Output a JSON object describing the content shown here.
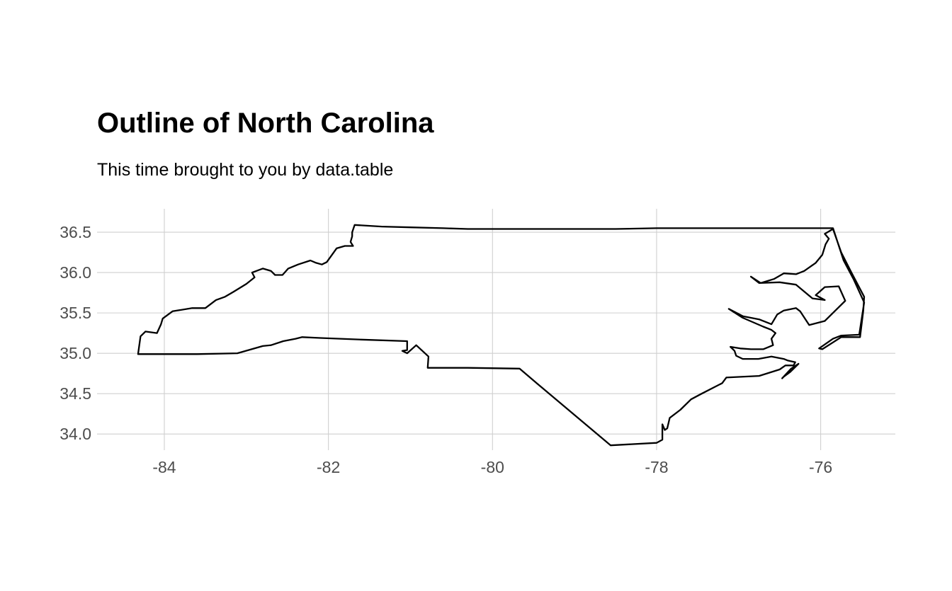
{
  "chart_data": {
    "type": "line",
    "title": "Outline of North Carolina",
    "subtitle": "This time brought to you by data.table",
    "xlabel": "",
    "ylabel": "",
    "xlim": [
      -84.82,
      -75.09
    ],
    "ylim": [
      33.8,
      36.79
    ],
    "x_ticks": [
      -84,
      -82,
      -80,
      -78,
      -76
    ],
    "x_tick_labels": [
      "-84",
      "-82",
      "-80",
      "-78",
      "-76"
    ],
    "y_ticks": [
      34.0,
      34.5,
      35.0,
      35.5,
      36.0,
      36.5
    ],
    "y_tick_labels": [
      "34.0",
      "34.5",
      "35.0",
      "35.5",
      "36.0",
      "36.5"
    ],
    "grid": true,
    "legend": "none",
    "colors": {
      "line": "#000000",
      "grid": "#cfcfcf",
      "tick_text": "#4d4d4d",
      "background": "#ffffff"
    },
    "series": [
      {
        "points": [
          [
            -84.32,
            34.99
          ],
          [
            -83.6,
            34.99
          ],
          [
            -83.11,
            35.0
          ],
          [
            -82.8,
            35.09
          ],
          [
            -82.7,
            35.1
          ],
          [
            -82.55,
            35.15
          ],
          [
            -82.4,
            35.18
          ],
          [
            -82.32,
            35.2
          ],
          [
            -82.1,
            35.19
          ],
          [
            -81.6,
            35.17
          ],
          [
            -81.04,
            35.15
          ],
          [
            -81.04,
            35.04
          ],
          [
            -81.1,
            35.03
          ],
          [
            -81.04,
            35.0
          ],
          [
            -80.93,
            35.1
          ],
          [
            -80.78,
            34.96
          ],
          [
            -80.79,
            34.82
          ],
          [
            -80.3,
            34.82
          ],
          [
            -79.67,
            34.81
          ],
          [
            -79.45,
            34.62
          ],
          [
            -78.56,
            33.86
          ],
          [
            -78.0,
            33.89
          ],
          [
            -77.93,
            33.93
          ],
          [
            -77.93,
            34.12
          ],
          [
            -77.9,
            34.05
          ],
          [
            -77.87,
            34.07
          ],
          [
            -77.84,
            34.2
          ],
          [
            -77.71,
            34.3
          ],
          [
            -77.58,
            34.43
          ],
          [
            -77.45,
            34.5
          ],
          [
            -77.2,
            34.63
          ],
          [
            -77.15,
            34.7
          ],
          [
            -76.75,
            34.72
          ],
          [
            -76.5,
            34.8
          ],
          [
            -76.43,
            34.85
          ],
          [
            -76.33,
            34.85
          ],
          [
            -76.31,
            34.89
          ],
          [
            -76.4,
            34.91
          ],
          [
            -76.45,
            34.93
          ],
          [
            -76.6,
            34.96
          ],
          [
            -76.76,
            34.93
          ],
          [
            -76.95,
            34.93
          ],
          [
            -77.03,
            34.97
          ],
          [
            -77.05,
            35.03
          ],
          [
            -77.1,
            35.08
          ],
          [
            -76.98,
            35.06
          ],
          [
            -76.85,
            35.05
          ],
          [
            -76.7,
            35.05
          ],
          [
            -76.58,
            35.1
          ],
          [
            -76.6,
            35.18
          ],
          [
            -76.55,
            35.25
          ],
          [
            -76.6,
            35.29
          ],
          [
            -76.7,
            35.33
          ],
          [
            -76.95,
            35.44
          ],
          [
            -77.12,
            35.55
          ],
          [
            -76.95,
            35.46
          ],
          [
            -76.75,
            35.42
          ],
          [
            -76.6,
            35.36
          ],
          [
            -76.53,
            35.48
          ],
          [
            -76.45,
            35.53
          ],
          [
            -76.3,
            35.56
          ],
          [
            -76.25,
            35.52
          ],
          [
            -76.14,
            35.35
          ],
          [
            -75.95,
            35.4
          ],
          [
            -75.85,
            35.5
          ],
          [
            -75.7,
            35.65
          ],
          [
            -75.78,
            35.83
          ],
          [
            -75.95,
            35.82
          ],
          [
            -76.06,
            35.72
          ],
          [
            -75.95,
            35.66
          ],
          [
            -76.1,
            35.68
          ],
          [
            -76.3,
            35.85
          ],
          [
            -76.5,
            35.88
          ],
          [
            -76.75,
            35.87
          ],
          [
            -76.85,
            35.95
          ],
          [
            -76.73,
            35.87
          ],
          [
            -76.57,
            35.92
          ],
          [
            -76.45,
            35.99
          ],
          [
            -76.3,
            35.98
          ],
          [
            -76.2,
            36.02
          ],
          [
            -76.06,
            36.12
          ],
          [
            -75.98,
            36.22
          ],
          [
            -75.94,
            36.35
          ],
          [
            -75.9,
            36.42
          ],
          [
            -75.95,
            36.48
          ],
          [
            -75.85,
            36.54
          ],
          [
            -75.75,
            36.25
          ],
          [
            -75.62,
            35.99
          ],
          [
            -75.47,
            35.7
          ],
          [
            -75.48,
            35.53
          ],
          [
            -75.52,
            35.2
          ],
          [
            -75.75,
            35.2
          ],
          [
            -75.98,
            35.05
          ],
          [
            -76.02,
            35.06
          ],
          [
            -75.85,
            35.18
          ],
          [
            -75.75,
            35.22
          ],
          [
            -75.53,
            35.23
          ],
          [
            -75.47,
            35.63
          ],
          [
            -75.6,
            35.92
          ],
          [
            -75.72,
            36.15
          ],
          [
            -75.85,
            36.55
          ],
          [
            -75.9,
            36.55
          ],
          [
            -76.2,
            36.55
          ],
          [
            -76.5,
            36.55
          ],
          [
            -77.0,
            36.55
          ],
          [
            -77.5,
            36.55
          ],
          [
            -78.0,
            36.55
          ],
          [
            -78.5,
            36.54
          ],
          [
            -79.0,
            36.54
          ],
          [
            -79.5,
            36.54
          ],
          [
            -80.0,
            36.54
          ],
          [
            -80.3,
            36.54
          ],
          [
            -80.6,
            36.55
          ],
          [
            -81.0,
            36.56
          ],
          [
            -81.35,
            36.57
          ],
          [
            -81.68,
            36.59
          ],
          [
            -81.71,
            36.5
          ],
          [
            -81.71,
            36.45
          ],
          [
            -81.73,
            36.38
          ],
          [
            -81.7,
            36.33
          ],
          [
            -81.8,
            36.33
          ],
          [
            -81.9,
            36.3
          ],
          [
            -82.02,
            36.13
          ],
          [
            -82.08,
            36.1
          ],
          [
            -82.15,
            36.12
          ],
          [
            -82.22,
            36.15
          ],
          [
            -82.37,
            36.1
          ],
          [
            -82.49,
            36.05
          ],
          [
            -82.56,
            35.97
          ],
          [
            -82.65,
            35.97
          ],
          [
            -82.7,
            36.02
          ],
          [
            -82.8,
            36.05
          ],
          [
            -82.93,
            36.0
          ],
          [
            -82.9,
            35.94
          ],
          [
            -83.0,
            35.86
          ],
          [
            -83.16,
            35.76
          ],
          [
            -83.26,
            35.7
          ],
          [
            -83.37,
            35.66
          ],
          [
            -83.5,
            35.56
          ],
          [
            -83.66,
            35.56
          ],
          [
            -83.9,
            35.52
          ],
          [
            -84.02,
            35.43
          ],
          [
            -84.04,
            35.36
          ],
          [
            -84.09,
            35.25
          ],
          [
            -84.23,
            35.27
          ],
          [
            -84.29,
            35.21
          ],
          [
            -84.32,
            34.99
          ]
        ]
      },
      {
        "points": [
          [
            -76.47,
            34.69
          ],
          [
            -76.36,
            34.81
          ],
          [
            -76.27,
            34.87
          ],
          [
            -76.37,
            34.77
          ],
          [
            -76.45,
            34.71
          ],
          [
            -76.47,
            34.69
          ]
        ]
      }
    ]
  }
}
